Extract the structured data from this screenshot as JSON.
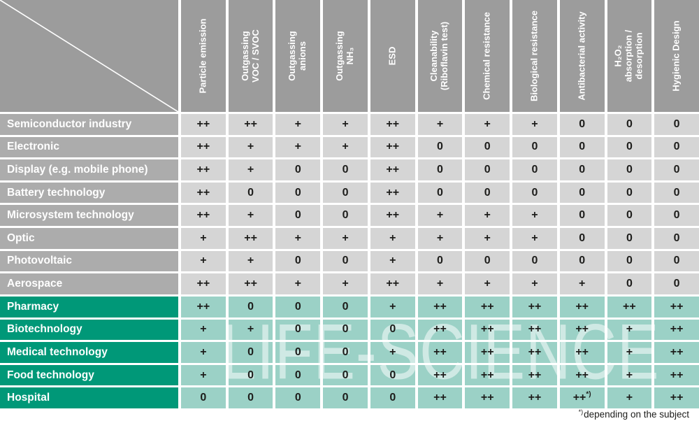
{
  "table": {
    "columns": [
      "Particle emission",
      "Outgassing\nVOC / SVOC",
      "Outgassing\nanions",
      "Outgassing\nNH₃",
      "ESD",
      "Cleanability\n(Riboflavin test)",
      "Chemical resistance",
      "Biological resistance",
      "Antibacterial activity",
      "H₂O₂\nabsorption /\ndesorption",
      "Hygienic Design"
    ],
    "rows": [
      {
        "label": "Semiconductor industry",
        "group": "industry",
        "values": [
          "++",
          "++",
          "+",
          "+",
          "++",
          "+",
          "+",
          "+",
          "0",
          "0",
          "0"
        ]
      },
      {
        "label": "Electronic",
        "group": "industry",
        "values": [
          "++",
          "+",
          "+",
          "+",
          "++",
          "0",
          "0",
          "0",
          "0",
          "0",
          "0"
        ]
      },
      {
        "label": "Display (e.g. mobile phone)",
        "group": "industry",
        "values": [
          "++",
          "+",
          "0",
          "0",
          "++",
          "0",
          "0",
          "0",
          "0",
          "0",
          "0"
        ]
      },
      {
        "label": "Battery technology",
        "group": "industry",
        "values": [
          "++",
          "0",
          "0",
          "0",
          "++",
          "0",
          "0",
          "0",
          "0",
          "0",
          "0"
        ]
      },
      {
        "label": "Microsystem technology",
        "group": "industry",
        "values": [
          "++",
          "+",
          "0",
          "0",
          "++",
          "+",
          "+",
          "+",
          "0",
          "0",
          "0"
        ]
      },
      {
        "label": "Optic",
        "group": "industry",
        "values": [
          "+",
          "++",
          "+",
          "+",
          "+",
          "+",
          "+",
          "+",
          "0",
          "0",
          "0"
        ]
      },
      {
        "label": "Photovoltaic",
        "group": "industry",
        "values": [
          "+",
          "+",
          "0",
          "0",
          "+",
          "0",
          "0",
          "0",
          "0",
          "0",
          "0"
        ]
      },
      {
        "label": "Aerospace",
        "group": "industry",
        "values": [
          "++",
          "++",
          "+",
          "+",
          "++",
          "+",
          "+",
          "+",
          "+",
          "0",
          "0"
        ]
      },
      {
        "label": "Pharmacy",
        "group": "life-science",
        "values": [
          "++",
          "0",
          "0",
          "0",
          "+",
          "++",
          "++",
          "++",
          "++",
          "++",
          "++"
        ]
      },
      {
        "label": "Biotechnology",
        "group": "life-science",
        "values": [
          "+",
          "+",
          "0",
          "0",
          "0",
          "++",
          "++",
          "++",
          "++",
          "+",
          "++"
        ]
      },
      {
        "label": "Medical technology",
        "group": "life-science",
        "values": [
          "+",
          "0",
          "0",
          "0",
          "+",
          "++",
          "++",
          "++",
          "++",
          "+",
          "++"
        ]
      },
      {
        "label": "Food technology",
        "group": "life-science",
        "values": [
          "+",
          "0",
          "0",
          "0",
          "0",
          "++",
          "++",
          "++",
          "++",
          "+",
          "++"
        ]
      },
      {
        "label": "Hospital",
        "group": "life-science",
        "values": [
          "0",
          "0",
          "0",
          "0",
          "0",
          "++",
          "++",
          "++",
          "++*)",
          "+",
          "++"
        ]
      }
    ],
    "watermark": "LIFE-SCIENCE",
    "footnote": {
      "marker": "*)",
      "text": "depending on the subject"
    }
  },
  "colors": {
    "header-gray": "#9c9c9c",
    "label-gray": "#acacac",
    "cell-gray": "#d5d5d5",
    "teal": "#009878",
    "cell-teal": "#9bd1c6",
    "ink": "#1d1d1b"
  }
}
